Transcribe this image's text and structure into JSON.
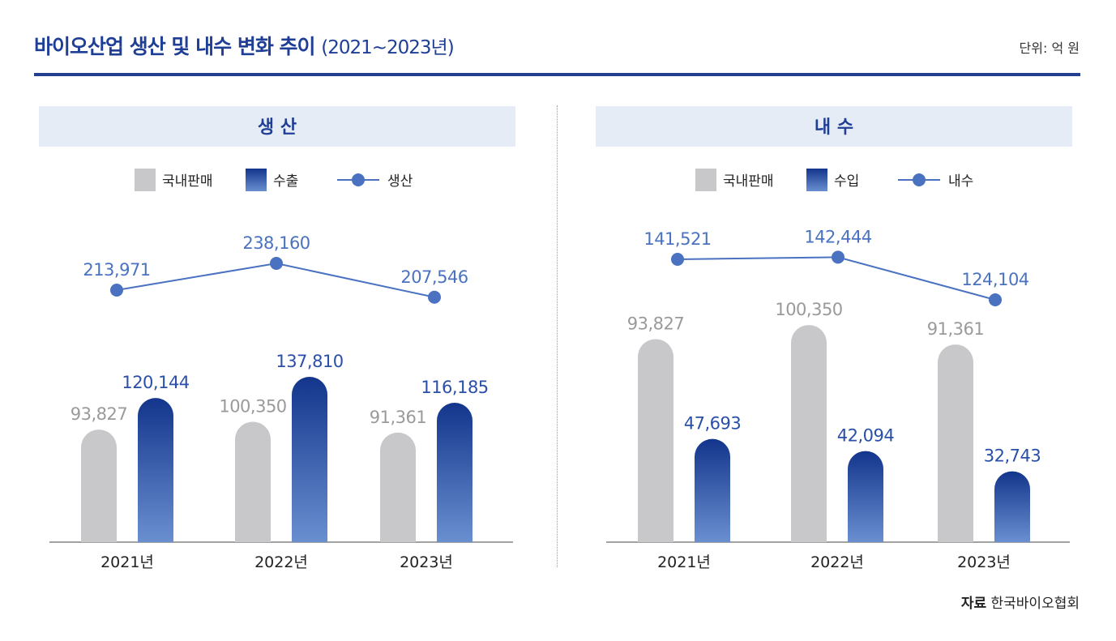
{
  "title": "바이오산업 생산 및 내수 변화 추이",
  "title_period": "(2021~2023년)",
  "unit": "단위: 억 원",
  "source_label": "자료",
  "source_text": "한국바이오협회",
  "colors": {
    "gray": "#c8c8ca",
    "blue_top": "#13358c",
    "blue_bottom": "#6a8fd0",
    "line": "#4a72c0",
    "header_bg": "#e6ecf6",
    "title": "#1f3f96"
  },
  "chart_data": [
    {
      "type": "bar+line",
      "title": "생 산",
      "categories": [
        "2021년",
        "2022년",
        "2023년"
      ],
      "series": [
        {
          "name": "국내판매",
          "type": "bar",
          "values": [
            93827,
            100350,
            91361
          ]
        },
        {
          "name": "수출",
          "type": "bar",
          "values": [
            120144,
            137810,
            116185
          ]
        },
        {
          "name": "생산",
          "type": "line",
          "values": [
            213971,
            238160,
            207546
          ]
        }
      ],
      "legend": "top-center"
    },
    {
      "type": "bar+line",
      "title": "내 수",
      "categories": [
        "2021년",
        "2022년",
        "2023년"
      ],
      "series": [
        {
          "name": "국내판매",
          "type": "bar",
          "values": [
            93827,
            100350,
            91361
          ]
        },
        {
          "name": "수입",
          "type": "bar",
          "values": [
            47693,
            42094,
            32743
          ]
        },
        {
          "name": "내수",
          "type": "line",
          "values": [
            141521,
            142444,
            124104
          ]
        }
      ],
      "legend": "top-center"
    }
  ]
}
